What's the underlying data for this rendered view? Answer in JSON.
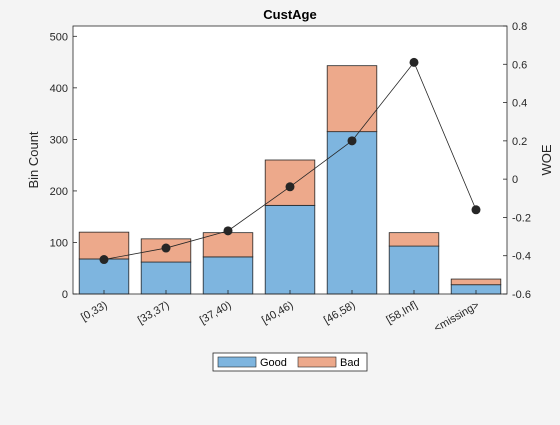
{
  "chart_data": {
    "type": "bar",
    "title": "CustAge",
    "categories": [
      "[0,33)",
      "[33,37)",
      "[37,40)",
      "[40,46)",
      "[46,58)",
      "[58,Inf]",
      "<missing>"
    ],
    "stacked": true,
    "series": [
      {
        "name": "Good",
        "values": [
          68,
          62,
          72,
          172,
          315,
          93,
          18
        ],
        "color": "#7eb5df"
      },
      {
        "name": "Bad",
        "values": [
          52,
          45,
          47,
          88,
          128,
          26,
          11
        ],
        "color": "#eda98b"
      }
    ],
    "woe": {
      "values": [
        -0.42,
        -0.36,
        -0.27,
        -0.04,
        0.2,
        0.61,
        -0.16
      ],
      "color": "#262626"
    },
    "ylabel_left": "Bin Count",
    "ylabel_right": "WOE",
    "ylim_left": [
      0,
      520
    ],
    "ylim_right": [
      -0.6,
      0.8
    ],
    "yticks_left": [
      "0",
      "100",
      "200",
      "300",
      "400",
      "500"
    ],
    "yticks_right": [
      "-0.6",
      "-0.4",
      "-0.2",
      "0",
      "0.2",
      "0.4",
      "0.6",
      "0.8"
    ],
    "legend_position": "bottom-center",
    "grid": false
  },
  "colors": {
    "background": "#f4f4f4",
    "axes_background": "#ffffff",
    "axis": "#262626"
  }
}
